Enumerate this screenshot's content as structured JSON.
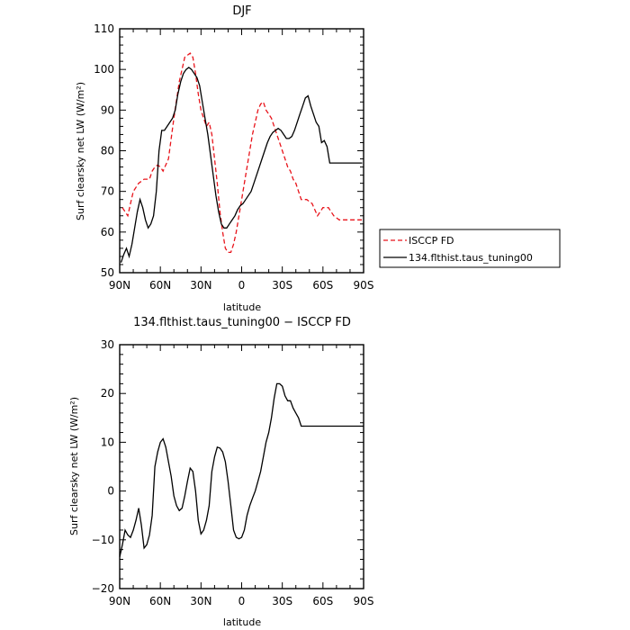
{
  "chart_data": [
    {
      "type": "line",
      "title": "DJF",
      "xlabel": "latitude",
      "ylabel": "Surf clearsky net LW (W/m²)",
      "ylim": [
        50,
        110
      ],
      "yticks": [
        "50",
        "60",
        "70",
        "80",
        "90",
        "100",
        "110"
      ],
      "xlim": [
        -90,
        90
      ],
      "xticks": [
        {
          "v": -90,
          "label": "90N"
        },
        {
          "v": -60,
          "label": "60N"
        },
        {
          "v": -30,
          "label": "30N"
        },
        {
          "v": 0,
          "label": "0"
        },
        {
          "v": 30,
          "label": "30S"
        },
        {
          "v": 60,
          "label": "60S"
        },
        {
          "v": 90,
          "label": "90S"
        }
      ],
      "legend_position": "right",
      "series": [
        {
          "name": "ISCCP FD",
          "color": "#e8141b",
          "dash": "dashed",
          "x": [
            -88,
            -86,
            -84,
            -82,
            -80,
            -76,
            -72,
            -68,
            -66,
            -64,
            -62,
            -60,
            -58,
            -54,
            -50,
            -46,
            -42,
            -38,
            -36,
            -34,
            -32,
            -30,
            -28,
            -26,
            -24,
            -22,
            -20,
            -18,
            -16,
            -14,
            -12,
            -10,
            -8,
            -6,
            -4,
            -2,
            0,
            2,
            4,
            6,
            8,
            10,
            12,
            14,
            16,
            18,
            20,
            22,
            24,
            26,
            28,
            30,
            32,
            34,
            36,
            38,
            40,
            44,
            48,
            52,
            56,
            60,
            64,
            68,
            72,
            74,
            76,
            80,
            84,
            86,
            88,
            90
          ],
          "y": [
            66,
            65,
            64,
            67,
            70,
            72,
            73,
            73,
            75,
            76,
            76.5,
            76,
            75,
            78,
            88,
            97,
            103,
            104,
            103,
            99,
            94,
            90,
            88,
            86,
            87,
            84,
            78,
            72,
            65,
            60,
            56,
            55,
            55,
            57,
            60,
            64,
            68,
            72,
            76,
            80,
            84,
            87,
            90,
            91.5,
            92,
            90,
            89,
            88,
            86,
            84,
            82,
            80,
            78,
            76,
            75,
            73,
            72,
            68,
            68,
            67,
            64,
            66,
            66,
            64,
            63,
            63,
            63,
            63,
            63,
            63,
            63,
            63
          ],
          "_note": "truncated-safety"
        },
        {
          "name": "134.flthist.taus_tuning00",
          "color": "#000000",
          "dash": "solid",
          "x": [
            -89,
            -87,
            -85,
            -83,
            -81,
            -79,
            -77,
            -75,
            -73,
            -71,
            -69,
            -67,
            -65,
            -63,
            -61,
            -59,
            -57,
            -55,
            -53,
            -51,
            -49,
            -47,
            -45,
            -43,
            -41,
            -39,
            -37,
            -35,
            -33,
            -31,
            -29,
            -27,
            -25,
            -23,
            -21,
            -19,
            -17,
            -15,
            -13,
            -11,
            -9,
            -7,
            -5,
            -3,
            -1,
            1,
            3,
            5,
            7,
            9,
            11,
            13,
            15,
            17,
            19,
            21,
            23,
            25,
            27,
            29,
            31,
            33,
            35,
            37,
            39,
            41,
            43,
            45,
            47,
            49,
            51,
            53,
            55,
            57,
            59,
            61,
            63,
            65,
            67,
            69,
            71,
            73,
            75,
            77,
            79,
            81,
            83,
            85,
            87,
            89
          ],
          "y": [
            52.5,
            54.5,
            56,
            54,
            57,
            61,
            65,
            68,
            66,
            63,
            61,
            62,
            64,
            70,
            80,
            85,
            85,
            86,
            87,
            88,
            90,
            94,
            97,
            99,
            100,
            100.5,
            100,
            99,
            98,
            96,
            92,
            88,
            84,
            79,
            74,
            69,
            65,
            62,
            61,
            61,
            62,
            63,
            64,
            65.5,
            66.5,
            67,
            68,
            69,
            70,
            72,
            74,
            76,
            78,
            80,
            82,
            83.5,
            84.5,
            85,
            85.5,
            85,
            84,
            83,
            83,
            83.5,
            85,
            87,
            89,
            91,
            93,
            93.5,
            91,
            89,
            87,
            86,
            82,
            82.5,
            81,
            77,
            77,
            77,
            77,
            77,
            77,
            77,
            77,
            77,
            77,
            77,
            77,
            77
          ]
        }
      ]
    },
    {
      "type": "line",
      "title": "134.flthist.taus_tuning00 − ISCCP FD",
      "xlabel": "latitude",
      "ylabel": "Surf clearsky net LW (W/m²)",
      "ylim": [
        -20,
        30
      ],
      "yticks": [
        "−20",
        "−10",
        "0",
        "10",
        "20",
        "30"
      ],
      "xlim": [
        -90,
        90
      ],
      "xticks": [
        {
          "v": -90,
          "label": "90N"
        },
        {
          "v": -60,
          "label": "60N"
        },
        {
          "v": -30,
          "label": "30N"
        },
        {
          "v": 0,
          "label": "0"
        },
        {
          "v": 30,
          "label": "30S"
        },
        {
          "v": 60,
          "label": "60S"
        },
        {
          "v": 90,
          "label": "90S"
        }
      ],
      "series": [
        {
          "name": "",
          "color": "#000000",
          "dash": "solid",
          "x": [
            -90,
            -88,
            -86,
            -84,
            -82,
            -80,
            -78,
            -76,
            -74,
            -72,
            -70,
            -68,
            -66,
            -64,
            -62,
            -60,
            -58,
            -56,
            -54,
            -52,
            -50,
            -48,
            -46,
            -44,
            -42,
            -40,
            -38,
            -36,
            -34,
            -32,
            -30,
            -28,
            -26,
            -24,
            -22,
            -20,
            -18,
            -16,
            -14,
            -12,
            -10,
            -8,
            -6,
            -4,
            -2,
            0,
            2,
            4,
            6,
            8,
            10,
            12,
            14,
            16,
            18,
            20,
            22,
            24,
            26,
            28,
            30,
            32,
            34,
            36,
            38,
            40,
            42,
            44,
            46,
            48,
            50,
            52,
            54,
            56,
            58,
            60,
            62,
            64,
            66,
            68,
            70,
            72,
            74,
            76,
            78,
            80,
            82,
            84,
            86,
            88,
            90
          ],
          "y": [
            -13.5,
            -11,
            -8,
            -9,
            -9.5,
            -8,
            -6,
            -3.5,
            -7,
            -11.7,
            -11,
            -9,
            -5,
            5,
            8,
            10,
            10.7,
            9,
            6,
            3,
            -1,
            -3,
            -4,
            -3.5,
            -1,
            2,
            4.7,
            4,
            0,
            -6,
            -8.8,
            -8,
            -6,
            -3,
            4,
            7,
            9,
            8.8,
            8,
            6,
            2,
            -3,
            -8,
            -9.5,
            -9.8,
            -9.5,
            -8,
            -5,
            -3,
            -1.5,
            0,
            2,
            4,
            7,
            10,
            12,
            15,
            19,
            22,
            22,
            21.5,
            19.5,
            18.5,
            18.5,
            17,
            16,
            15,
            13.3,
            13.3,
            13.3,
            13.3,
            13.3,
            13.3,
            13.3,
            13.3,
            13.3,
            13.3,
            13.3,
            13.3,
            13.3,
            13.3,
            13.3,
            13.3,
            13.3,
            13.3,
            13.3,
            13.3,
            13.3,
            13.3,
            13.3,
            13.3
          ]
        }
      ]
    }
  ]
}
